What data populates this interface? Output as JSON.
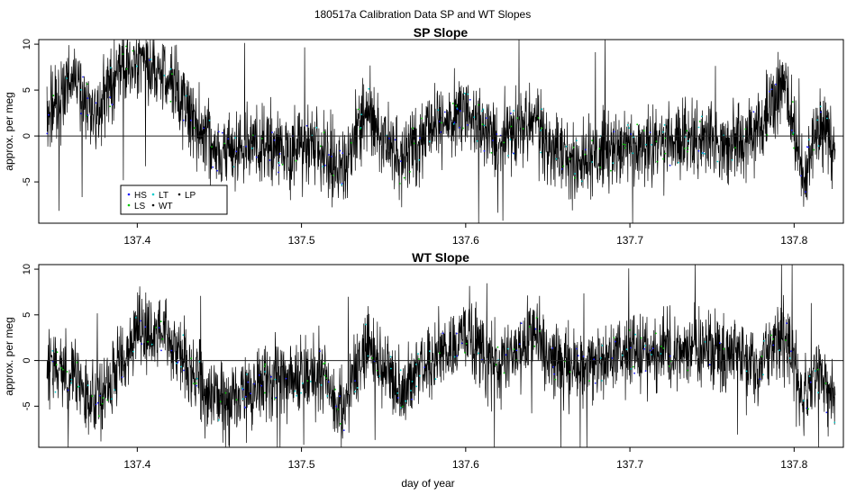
{
  "figure": {
    "title": "180517a   Calibration Data SP and WT Slopes",
    "xlabel": "day of year"
  },
  "legend": {
    "entries": [
      {
        "label": "HS",
        "color": "#1a1aff"
      },
      {
        "label": "LT",
        "color": "#00cccc"
      },
      {
        "label": "LP",
        "color": "#000000"
      },
      {
        "label": "LS",
        "color": "#00c800"
      },
      {
        "label": "WT",
        "color": "#000000"
      }
    ]
  },
  "chart_data": [
    {
      "type": "line",
      "title": "SP Slope",
      "xlabel": "",
      "ylabel": "approx. per meg",
      "xlim": [
        137.34,
        137.83
      ],
      "ylim": [
        -9.5,
        10.5
      ],
      "xticks": [
        "137.4",
        "137.5",
        "137.6",
        "137.7",
        "137.8"
      ],
      "yticks": [
        "-5",
        "0",
        "5",
        "10"
      ],
      "hline": 0,
      "series": [
        {
          "name": "WT",
          "color": "#000000",
          "x": [
            137.345,
            137.36,
            137.375,
            137.39,
            137.4,
            137.415,
            137.43,
            137.45,
            137.47,
            137.49,
            137.51,
            137.525,
            137.54,
            137.56,
            137.58,
            137.6,
            137.62,
            137.64,
            137.66,
            137.68,
            137.7,
            137.72,
            137.74,
            137.76,
            137.78,
            137.795,
            137.805,
            137.815,
            137.825
          ],
          "y": [
            2,
            6,
            2,
            8,
            8,
            7,
            3,
            -2,
            -1,
            -2,
            -1,
            -4,
            3,
            -3,
            1,
            3,
            -1,
            2,
            -3,
            -2,
            -1,
            -1,
            0,
            -1,
            1,
            6,
            -5,
            1,
            -1
          ]
        }
      ]
    },
    {
      "type": "line",
      "title": "WT Slope",
      "xlabel": "day of year",
      "ylabel": "approx. per meg",
      "xlim": [
        137.34,
        137.83
      ],
      "ylim": [
        -9.5,
        10.5
      ],
      "xticks": [
        "137.4",
        "137.5",
        "137.6",
        "137.7",
        "137.8"
      ],
      "yticks": [
        "-5",
        "0",
        "5",
        "10"
      ],
      "hline": 0,
      "series": [
        {
          "name": "WT",
          "color": "#000000",
          "x": [
            137.345,
            137.36,
            137.375,
            137.39,
            137.4,
            137.415,
            137.43,
            137.45,
            137.47,
            137.49,
            137.51,
            137.525,
            137.54,
            137.56,
            137.58,
            137.6,
            137.62,
            137.64,
            137.66,
            137.68,
            137.7,
            137.72,
            137.74,
            137.76,
            137.78,
            137.795,
            137.805,
            137.815,
            137.825
          ],
          "y": [
            -1,
            -2,
            -5,
            0,
            3,
            3,
            0,
            -5,
            -3,
            -2,
            -1,
            -6,
            2,
            -3,
            0,
            3,
            -1,
            3,
            -1,
            0,
            1,
            1,
            1,
            1,
            0,
            3,
            -4,
            -2,
            -5
          ]
        }
      ]
    }
  ]
}
